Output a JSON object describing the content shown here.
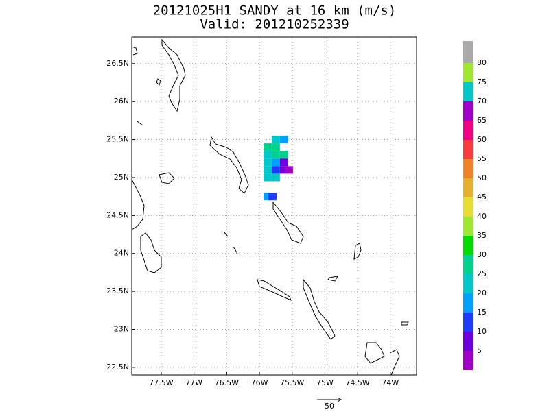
{
  "chart_data": {
    "type": "map",
    "title": "20121025H1 SANDY at 16 km (m/s)",
    "subtitle": "Valid: 201210252339",
    "xlim": [
      -77.95,
      -73.6
    ],
    "ylim": [
      22.4,
      26.85
    ],
    "xticks": [
      {
        "value": -77.5,
        "label": "77.5W"
      },
      {
        "value": -77,
        "label": "77W"
      },
      {
        "value": -76.5,
        "label": "76.5W"
      },
      {
        "value": -76,
        "label": "76W"
      },
      {
        "value": -75.5,
        "label": "75.5W"
      },
      {
        "value": -75,
        "label": "75W"
      },
      {
        "value": -74.5,
        "label": "74.5W"
      },
      {
        "value": -74,
        "label": "74W"
      }
    ],
    "yticks": [
      {
        "value": 22.5,
        "label": "22.5N"
      },
      {
        "value": 23,
        "label": "23N"
      },
      {
        "value": 23.5,
        "label": "23.5N"
      },
      {
        "value": 24,
        "label": "24N"
      },
      {
        "value": 24.5,
        "label": "24.5N"
      },
      {
        "value": 25,
        "label": "25N"
      },
      {
        "value": 25.5,
        "label": "25.5N"
      },
      {
        "value": 26,
        "label": "26N"
      },
      {
        "value": 26.5,
        "label": "26.5N"
      }
    ],
    "grid": true,
    "colorbar": {
      "levels": [
        5,
        10,
        15,
        20,
        25,
        30,
        35,
        40,
        45,
        50,
        55,
        60,
        65,
        70,
        75,
        80
      ],
      "colors": [
        "#a000c8",
        "#6e00dc",
        "#1e3cff",
        "#00a0ff",
        "#00c8c8",
        "#00d28c",
        "#00dc00",
        "#a0e632",
        "#e6dc32",
        "#e6af2d",
        "#f08228",
        "#fa3c3c",
        "#f00082",
        "#a000c8",
        "#00c8c8",
        "#a0e632",
        "#aaaaaa"
      ]
    },
    "cells": {
      "lon": [
        -75.75,
        -75.625,
        -75.875,
        -75.75,
        -75.875,
        -75.75,
        -75.625,
        -75.875,
        -75.75,
        -75.625,
        -75.875,
        -75.75,
        -75.625,
        -75.55,
        -75.875,
        -75.75,
        -75.875,
        -75.8
      ],
      "lat": [
        25.5,
        25.5,
        25.4,
        25.4,
        25.3,
        25.3,
        25.3,
        25.2,
        25.2,
        25.2,
        25.1,
        25.1,
        25.1,
        25.1,
        25.0,
        25.0,
        24.75,
        24.75
      ],
      "values": [
        20,
        17,
        25,
        25,
        20,
        25,
        27,
        20,
        15,
        8,
        20,
        13,
        8,
        3,
        22,
        20,
        18,
        14
      ]
    },
    "vector_reference": 50
  }
}
